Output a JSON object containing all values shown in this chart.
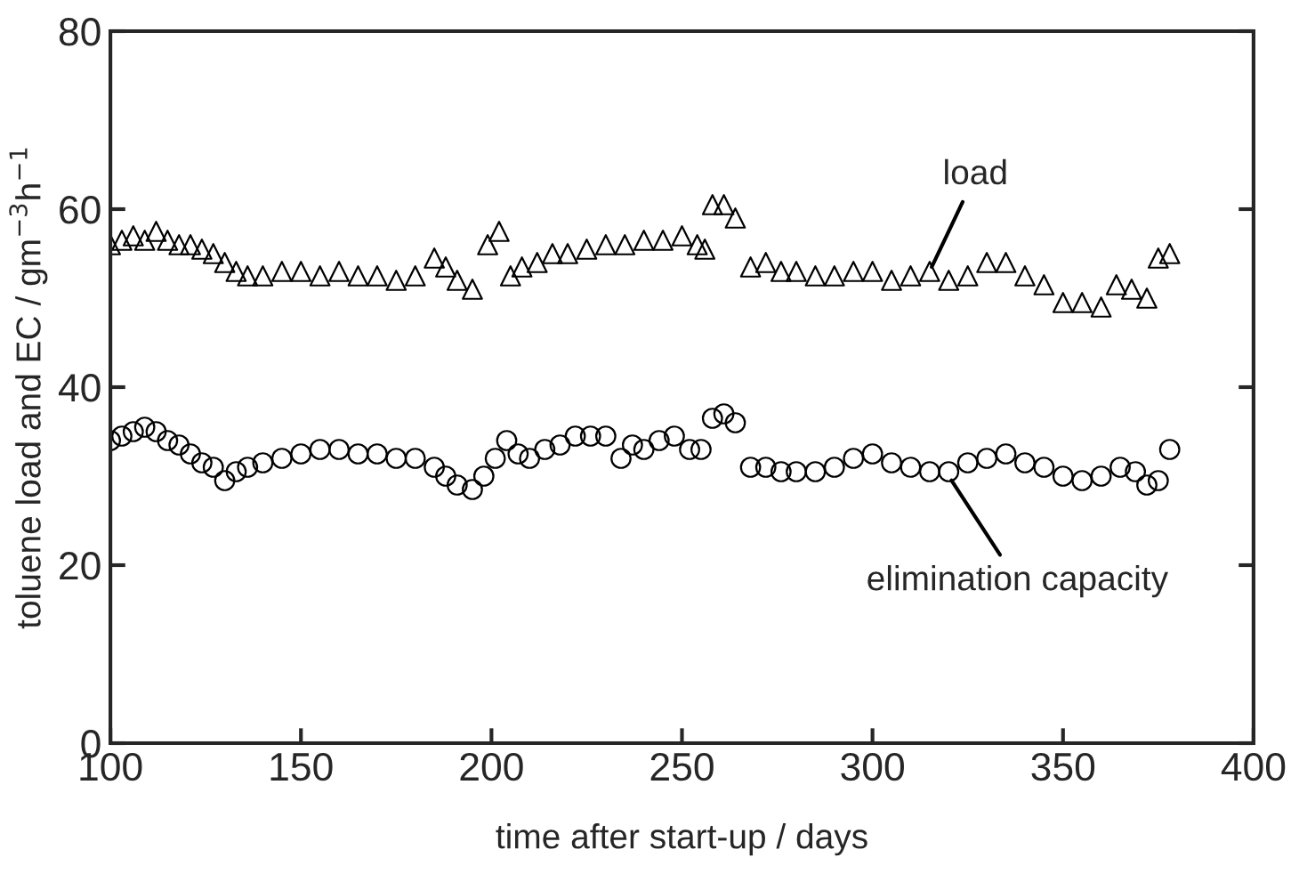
{
  "chart_data": {
    "type": "scatter",
    "xlabel": "time after start-up / days",
    "ylabel": "toluene load and EC / gm$^{−3}$h$^{−1}$",
    "xlim": [
      100,
      400
    ],
    "xticks": [
      100,
      150,
      200,
      250,
      300,
      350,
      400
    ],
    "ylim": [
      0,
      80
    ],
    "yticks": [
      0,
      20,
      40,
      60,
      80
    ],
    "grid": false,
    "series": [
      {
        "color": "#000000",
        "marker": "triangle",
        "x": [
          100,
          103,
          106,
          109,
          112,
          115,
          118,
          121,
          124,
          127,
          130,
          133,
          136,
          140,
          145,
          150,
          155,
          160,
          165,
          170,
          175,
          180,
          185,
          188,
          191,
          195,
          199,
          202,
          205,
          208,
          212,
          216,
          220,
          225,
          230,
          235,
          240,
          245,
          250,
          254,
          256,
          258,
          261,
          264,
          268,
          272,
          276,
          280,
          285,
          290,
          295,
          300,
          305,
          310,
          315,
          320,
          325,
          330,
          335,
          340,
          345,
          350,
          355,
          360,
          364,
          368,
          372,
          375,
          378
        ],
        "values": [
          56,
          56.5,
          57,
          56.5,
          57.5,
          56.5,
          56,
          56,
          55.5,
          55,
          54,
          53,
          52.5,
          52.5,
          53,
          53,
          52.5,
          53,
          52.5,
          52.5,
          52,
          52.5,
          54.5,
          53.5,
          52,
          51,
          56,
          57.5,
          52.5,
          53.5,
          54,
          55,
          55,
          55.5,
          56,
          56,
          56.5,
          56.5,
          57,
          56,
          55.5,
          60.5,
          60.5,
          59,
          53.5,
          54,
          53,
          53,
          52.5,
          52.5,
          53,
          53,
          52,
          52.5,
          53,
          52,
          52.5,
          54,
          54,
          52.5,
          51.5,
          49.5,
          49.5,
          49,
          51.5,
          51,
          50,
          54.5,
          55
        ]
      },
      {
        "color": "#000000",
        "marker": "circle",
        "x": [
          100,
          103,
          106,
          109,
          112,
          115,
          118,
          121,
          124,
          127,
          130,
          133,
          136,
          140,
          145,
          150,
          155,
          160,
          165,
          170,
          175,
          180,
          185,
          188,
          191,
          195,
          198,
          201,
          204,
          207,
          210,
          214,
          218,
          222,
          226,
          230,
          234,
          237,
          240,
          244,
          248,
          252,
          255,
          258,
          261,
          264,
          268,
          272,
          276,
          280,
          285,
          290,
          295,
          300,
          305,
          310,
          315,
          320,
          325,
          330,
          335,
          340,
          345,
          350,
          355,
          360,
          365,
          369,
          372,
          375,
          378
        ],
        "values": [
          34,
          34.5,
          35,
          35.5,
          35,
          34,
          33.5,
          32.5,
          31.5,
          31,
          29.5,
          30.5,
          31,
          31.5,
          32,
          32.5,
          33,
          33,
          32.5,
          32.5,
          32,
          32,
          31,
          30,
          29,
          28.5,
          30,
          32,
          34,
          32.5,
          32,
          33,
          33.5,
          34.5,
          34.5,
          34.5,
          32,
          33.5,
          33,
          34,
          34.5,
          33,
          33,
          36.5,
          37,
          36,
          31,
          31,
          30.5,
          30.5,
          30.5,
          31,
          32,
          32.5,
          31.5,
          31,
          30.5,
          30.5,
          31.5,
          32,
          32.5,
          31.5,
          31,
          30,
          29.5,
          30,
          31,
          30.5,
          29,
          29.5,
          33
        ]
      }
    ],
    "annotations": [
      {
        "text": "load",
        "x": 315,
        "y": 53
      },
      {
        "text": "elimination capacity",
        "x": 320,
        "y": 30
      }
    ]
  }
}
